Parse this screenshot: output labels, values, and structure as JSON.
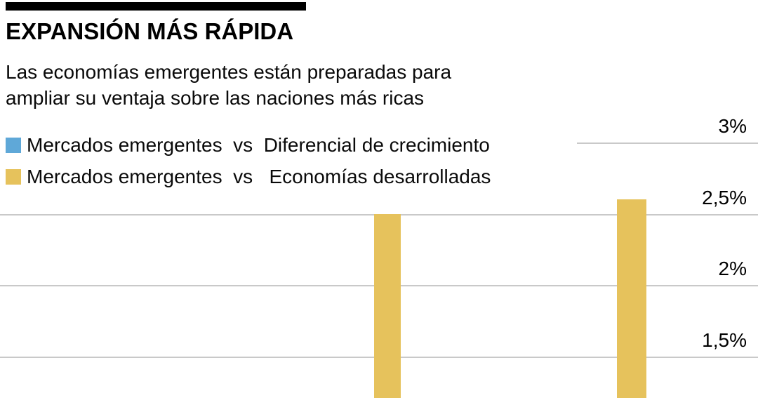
{
  "header": {
    "title": "EXPANSIÓN MÁS RÁPIDA",
    "subtitle_line1": "Las economías emergentes están preparadas para",
    "subtitle_line2": "ampliar su ventaja sobre las naciones más ricas"
  },
  "legend": {
    "items": [
      {
        "label": "Mercados emergentes  vs  Diferencial de crecimiento",
        "color": "#5FA8D8"
      },
      {
        "label": "Mercados emergentes  vs   Economías desarrolladas",
        "color": "#E6C25C"
      }
    ]
  },
  "chart_data": {
    "type": "bar",
    "title": "EXPANSIÓN MÁS RÁPIDA",
    "subtitle": "Las economías emergentes están preparadas para ampliar su ventaja sobre las naciones más ricas",
    "series": [
      {
        "name": "Mercados emergentes vs Economías desarrolladas",
        "color": "#E6C25C",
        "values": [
          2.5,
          2.6
        ]
      }
    ],
    "y_ticks": [
      "3%",
      "2,5%",
      "2%",
      "1,5%"
    ],
    "y_tick_values": [
      3,
      2.5,
      2,
      1.5
    ],
    "unit": "%",
    "ylim_visible": [
      1.2,
      3.1
    ],
    "grid": true,
    "legend_position": "top-left",
    "note": "Chart is cropped at the bottom; only the tops of two gold bars are visible."
  }
}
